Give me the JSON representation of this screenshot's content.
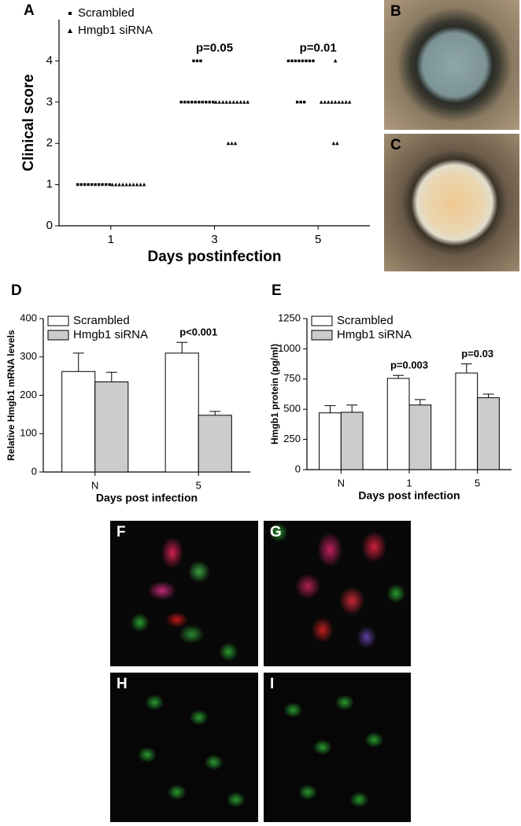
{
  "chart_data": [
    {
      "panel": "A",
      "type": "strip",
      "ylabel": "Clinical score",
      "xlabel": "Days postinfection",
      "categories": [
        "1",
        "3",
        "5"
      ],
      "ylim": [
        0,
        5
      ],
      "yticks": [
        0,
        1,
        2,
        3,
        4
      ],
      "series": [
        {
          "name": "Scrambled",
          "marker": "square",
          "color": "#000000",
          "values": [
            [
              1,
              1,
              1,
              1,
              1,
              1,
              1,
              1,
              1,
              1
            ],
            [
              4,
              4,
              4,
              3,
              3,
              3,
              3,
              3,
              3,
              3,
              3,
              3,
              3
            ],
            [
              4,
              4,
              4,
              4,
              4,
              4,
              4,
              4,
              3,
              3,
              3
            ]
          ]
        },
        {
          "name": "Hmgb1 siRNA",
          "marker": "triangle",
          "color": "#000000",
          "values": [
            [
              1,
              1,
              1,
              1,
              1,
              1,
              1,
              1,
              1,
              1
            ],
            [
              3,
              3,
              3,
              3,
              3,
              3,
              3,
              3,
              3,
              3,
              2,
              2,
              2
            ],
            [
              4,
              3,
              3,
              3,
              3,
              3,
              3,
              3,
              3,
              3,
              2,
              2
            ]
          ]
        }
      ],
      "annotations": [
        {
          "text": "p=0.05",
          "category": "3"
        },
        {
          "text": "p=0.01",
          "category": "5"
        }
      ]
    },
    {
      "panel": "D",
      "type": "bar",
      "ylabel": "Relative Hmgb1 mRNA levels",
      "xlabel": "Days post infection",
      "categories": [
        "N",
        "5"
      ],
      "ylim": [
        0,
        400
      ],
      "yticks": [
        0,
        100,
        200,
        300,
        400
      ],
      "series": [
        {
          "name": "Scrambled",
          "color": "#ffffff",
          "values": [
            262,
            310
          ],
          "errors": [
            48,
            28
          ]
        },
        {
          "name": "Hmgb1 siRNA",
          "color": "#cccccc",
          "values": [
            235,
            148
          ],
          "errors": [
            25,
            10
          ]
        }
      ],
      "annotations": [
        {
          "text": "p<0.001",
          "category": "5"
        }
      ]
    },
    {
      "panel": "E",
      "type": "bar",
      "ylabel": "Hmgb1 protein (pg/ml)",
      "xlabel": "Days post infection",
      "categories": [
        "N",
        "1",
        "5"
      ],
      "ylim": [
        0,
        1250
      ],
      "yticks": [
        0,
        250,
        500,
        750,
        1000,
        1250
      ],
      "series": [
        {
          "name": "Scrambled",
          "color": "#ffffff",
          "values": [
            470,
            755,
            800
          ],
          "errors": [
            60,
            25,
            75
          ]
        },
        {
          "name": "Hmgb1 siRNA",
          "color": "#cccccc",
          "values": [
            475,
            535,
            595
          ],
          "errors": [
            60,
            45,
            30
          ]
        }
      ],
      "annotations": [
        {
          "text": "p=0.003",
          "category": "1"
        },
        {
          "text": "p=0.03",
          "category": "5"
        }
      ]
    }
  ],
  "image_panels": [
    "B",
    "C",
    "F",
    "G",
    "H",
    "I"
  ]
}
